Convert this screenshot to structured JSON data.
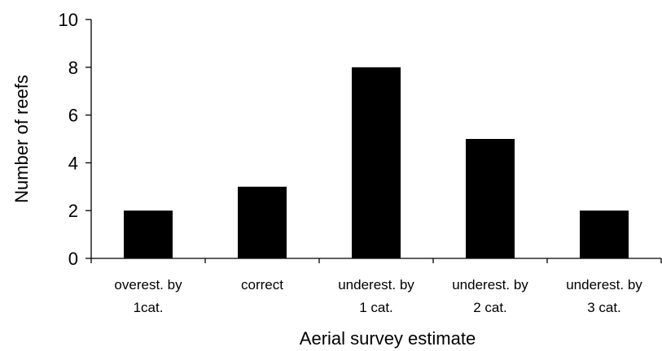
{
  "chart_data": {
    "type": "bar",
    "title": "",
    "xlabel": "Aerial survey estimate",
    "ylabel": "Number of reefs",
    "ylim": [
      0,
      10
    ],
    "yticks": [
      0,
      2,
      4,
      6,
      8,
      10
    ],
    "grid": false,
    "categories": [
      [
        "overest. by",
        "1cat."
      ],
      [
        "correct"
      ],
      [
        "underest. by",
        "1 cat."
      ],
      [
        "underest. by",
        "2 cat."
      ],
      [
        "underest. by",
        "3 cat."
      ]
    ],
    "values": [
      2,
      3,
      8,
      5,
      2
    ],
    "bar_color": "#000000"
  }
}
